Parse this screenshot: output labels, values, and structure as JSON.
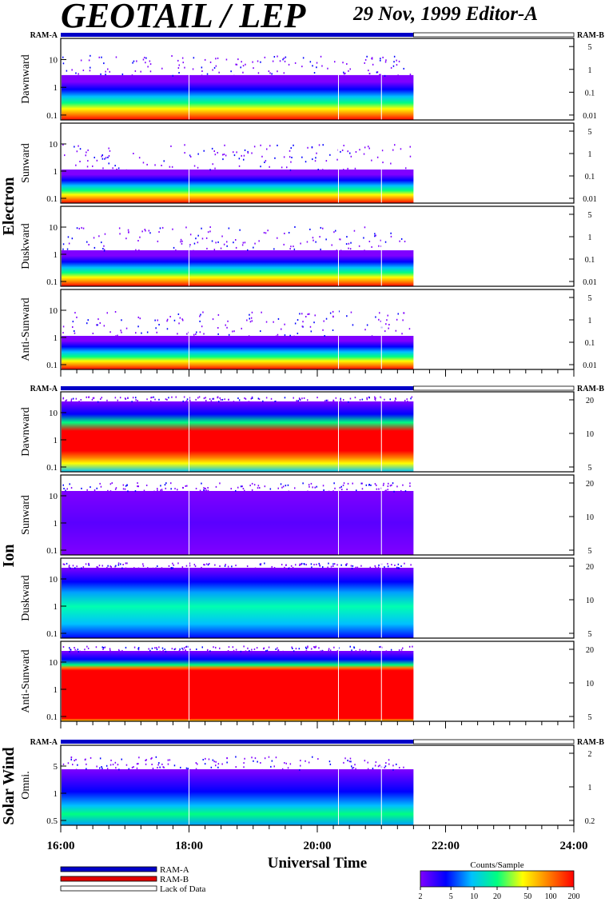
{
  "header": {
    "title": "GEOTAIL / LEP",
    "date_editor": "29 Nov, 1999   Editor-A"
  },
  "colors": {
    "ram_a": "#0000c8",
    "ram_b": "#e00000",
    "lack_of_data": "#ffffff",
    "spectrogram_palette": [
      "#8000ff",
      "#0000ff",
      "#00c0ff",
      "#00ff80",
      "#ffff00",
      "#ff8000",
      "#ff0000"
    ]
  },
  "chart_data": {
    "type": "heatmap",
    "xlabel": "Universal Time",
    "x_range_hours": [
      16,
      24
    ],
    "x_ticks": [
      "16:00",
      "18:00",
      "20:00",
      "22:00",
      "24:00"
    ],
    "data_end_hour": 21.5,
    "mode_bar_label_left": "RAM-A",
    "mode_bar_label_right": "RAM-B",
    "groups": [
      {
        "label": "Electron",
        "panels": [
          {
            "label": "Dawnward",
            "left_ticks": [
              "10",
              "1",
              "0.1"
            ],
            "right_ticks": [
              "5",
              "1",
              "0.1",
              "0.01"
            ]
          },
          {
            "label": "Sunward",
            "left_ticks": [
              "10",
              "1",
              "0.1"
            ],
            "right_ticks": [
              "5",
              "1",
              "0.1",
              "0.01"
            ]
          },
          {
            "label": "Duskward",
            "left_ticks": [
              "10",
              "1",
              "0.1"
            ],
            "right_ticks": [
              "5",
              "1",
              "0.1",
              "0.01"
            ]
          },
          {
            "label": "Anti-Sunward",
            "left_ticks": [
              "10",
              "1",
              "0.1"
            ],
            "right_ticks": [
              "5",
              "1",
              "0.1",
              "0.01"
            ]
          }
        ]
      },
      {
        "label": "Ion",
        "panels": [
          {
            "label": "Dawnward",
            "left_ticks": [
              "10",
              "1",
              "0.1"
            ],
            "right_ticks": [
              "20",
              "10",
              "5"
            ]
          },
          {
            "label": "Sunward",
            "left_ticks": [
              "10",
              "1",
              "0.1"
            ],
            "right_ticks": [
              "20",
              "10",
              "5"
            ]
          },
          {
            "label": "Duskward",
            "left_ticks": [
              "10",
              "1",
              "0.1"
            ],
            "right_ticks": [
              "20",
              "10",
              "5"
            ]
          },
          {
            "label": "Anti-Sunward",
            "left_ticks": [
              "10",
              "1",
              "0.1"
            ],
            "right_ticks": [
              "20",
              "10",
              "5"
            ]
          }
        ]
      },
      {
        "label": "Solar Wind",
        "panels": [
          {
            "label": "Omni.",
            "left_ticks": [
              "5",
              "1",
              "0.5"
            ],
            "right_ticks": [
              "2",
              "1",
              "0.2"
            ]
          }
        ]
      }
    ],
    "legend": [
      {
        "label": "RAM-A",
        "color": "#0000c8"
      },
      {
        "label": "RAM-B",
        "color": "#e00000"
      },
      {
        "label": "Lack of Data",
        "color": "#ffffff"
      }
    ],
    "colorbar": {
      "title": "Counts/Sample",
      "ticks": [
        "2",
        "5",
        "10",
        "20",
        "50",
        "100",
        "200"
      ],
      "scale": "log",
      "range": [
        2,
        200
      ]
    }
  }
}
